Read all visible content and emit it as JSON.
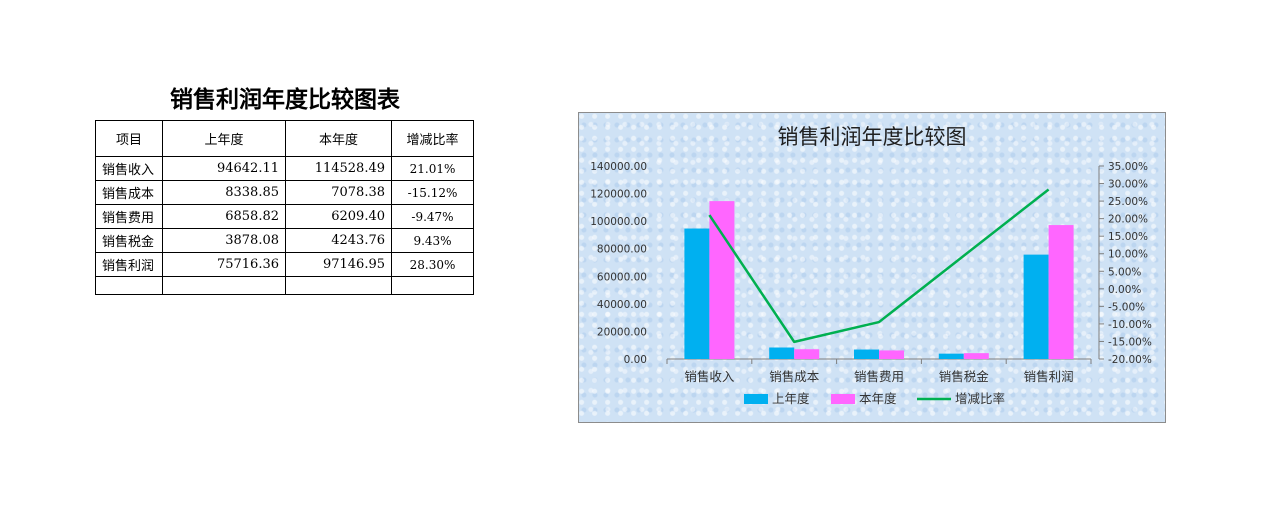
{
  "table": {
    "title": "销售利润年度比较图表",
    "headers": [
      "项目",
      "上年度",
      "本年度",
      "增减比率"
    ],
    "rows": [
      {
        "item": "销售收入",
        "prev": "94642.11",
        "curr": "114528.49",
        "rate": "21.01%"
      },
      {
        "item": "销售成本",
        "prev": "8338.85",
        "curr": "7078.38",
        "rate": "-15.12%"
      },
      {
        "item": "销售费用",
        "prev": "6858.82",
        "curr": "6209.40",
        "rate": "-9.47%"
      },
      {
        "item": "销售税金",
        "prev": "3878.08",
        "curr": "4243.76",
        "rate": "9.43%"
      },
      {
        "item": "销售利润",
        "prev": "75716.36",
        "curr": "97146.95",
        "rate": "28.30%"
      }
    ]
  },
  "chart_data": {
    "type": "bar",
    "title": "销售利润年度比较图",
    "categories": [
      "销售收入",
      "销售成本",
      "销售费用",
      "销售税金",
      "销售利润"
    ],
    "series": [
      {
        "name": "上年度",
        "type": "bar",
        "axis": "left",
        "color": "#00b0f0",
        "values": [
          94642.11,
          8338.85,
          6858.82,
          3878.08,
          75716.36
        ]
      },
      {
        "name": "本年度",
        "type": "bar",
        "axis": "left",
        "color": "#ff66ff",
        "values": [
          114528.49,
          7078.38,
          6209.4,
          4243.76,
          97146.95
        ]
      },
      {
        "name": "增减比率",
        "type": "line",
        "axis": "right",
        "color": "#00b050",
        "values": [
          21.01,
          -15.12,
          -9.47,
          9.43,
          28.3
        ]
      }
    ],
    "ylim": [
      0,
      140000
    ],
    "y_ticks": [
      "0.00",
      "20000.00",
      "40000.00",
      "60000.00",
      "80000.00",
      "100000.00",
      "120000.00",
      "140000.00"
    ],
    "y2lim": [
      -20,
      35
    ],
    "y2_ticks": [
      "-20.00%",
      "-15.00%",
      "-10.00%",
      "-5.00%",
      "0.00%",
      "5.00%",
      "10.00%",
      "15.00%",
      "20.00%",
      "25.00%",
      "30.00%",
      "35.00%"
    ],
    "legend_position": "bottom",
    "grid": false
  }
}
